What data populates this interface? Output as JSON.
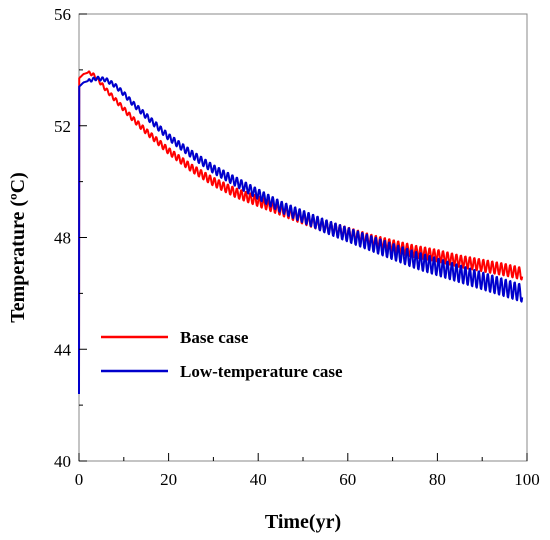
{
  "chart_data": {
    "type": "line",
    "xlabel": "Time(yr)",
    "ylabel": "Temperature (ºC)",
    "xlim": [
      0,
      100
    ],
    "ylim": [
      40,
      56
    ],
    "x_ticks": [
      0,
      20,
      40,
      60,
      80,
      100
    ],
    "x_tick_labels": [
      "0",
      "20",
      "40",
      "60",
      "80",
      "100"
    ],
    "y_ticks": [
      40,
      44,
      48,
      52,
      56
    ],
    "y_tick_labels": [
      "40",
      "44",
      "48",
      "52",
      "56"
    ],
    "grid": false,
    "legend_position": "bottom-left",
    "series": [
      {
        "name": "Base case",
        "color": "#ff0000",
        "x": [
          0,
          0.05,
          1,
          2,
          3,
          4,
          6,
          8,
          10,
          12,
          15,
          20,
          25,
          30,
          35,
          40,
          45,
          50,
          55,
          60,
          65,
          70,
          75,
          80,
          85,
          90,
          95,
          99
        ],
        "y": [
          42.4,
          53.7,
          53.85,
          53.9,
          53.85,
          53.7,
          53.3,
          52.95,
          52.6,
          52.25,
          51.8,
          51.1,
          50.5,
          50.0,
          49.6,
          49.3,
          49.0,
          48.7,
          48.4,
          48.15,
          47.9,
          47.7,
          47.5,
          47.35,
          47.15,
          47.0,
          46.85,
          46.7
        ]
      },
      {
        "name": "Low-temperature case",
        "color": "#0000cc",
        "x": [
          0,
          0.05,
          1,
          2,
          4,
          6,
          8,
          10,
          12,
          15,
          20,
          25,
          30,
          35,
          40,
          45,
          50,
          55,
          60,
          65,
          70,
          75,
          80,
          85,
          90,
          95,
          99
        ],
        "y": [
          42.4,
          53.4,
          53.55,
          53.6,
          53.7,
          53.65,
          53.45,
          53.15,
          52.8,
          52.35,
          51.6,
          51.0,
          50.45,
          50.0,
          49.55,
          49.1,
          48.75,
          48.4,
          48.1,
          47.8,
          47.5,
          47.2,
          46.95,
          46.7,
          46.45,
          46.2,
          46.0
        ]
      }
    ]
  }
}
